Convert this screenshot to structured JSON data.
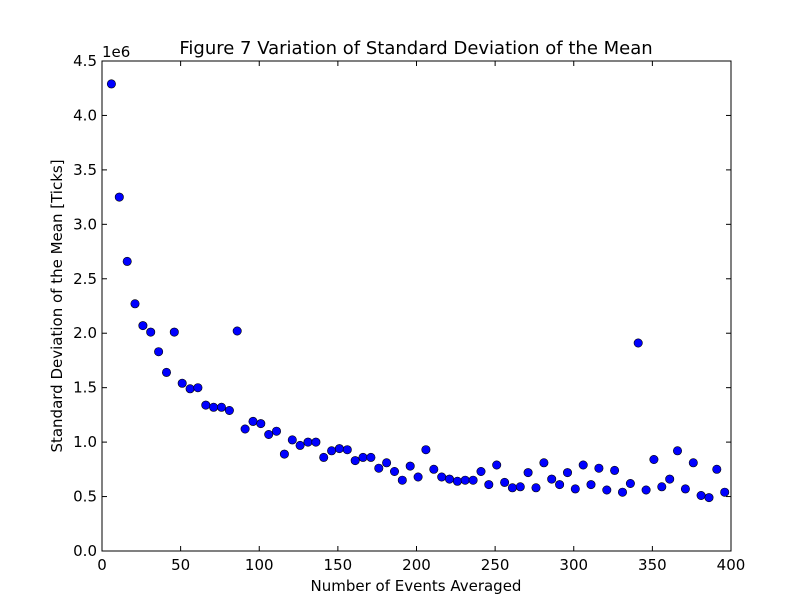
{
  "chart_data": {
    "type": "scatter",
    "title": "Figure 7 Variation of Standard Deviation of the Mean",
    "xlabel": "Number of Events Averaged",
    "ylabel": "Standard Deviation of the Mean [Ticks]",
    "y_offset_label": "1e6",
    "xlim": [
      0,
      400
    ],
    "ylim": [
      0,
      4.5
    ],
    "x_ticks": [
      0,
      50,
      100,
      150,
      200,
      250,
      300,
      350,
      400
    ],
    "x_tick_labels": [
      "0",
      "50",
      "100",
      "150",
      "200",
      "250",
      "300",
      "350",
      "400"
    ],
    "y_ticks": [
      0,
      0.5,
      1.0,
      1.5,
      2.0,
      2.5,
      3.0,
      3.5,
      4.0,
      4.5
    ],
    "y_tick_labels": [
      "0.0",
      "0.5",
      "1.0",
      "1.5",
      "2.0",
      "2.5",
      "3.0",
      "3.5",
      "4.0",
      "4.5"
    ],
    "grid": false,
    "marker_color": "#0000ff",
    "series": [
      {
        "x": [
          6,
          11,
          16,
          21,
          26,
          31,
          36,
          41,
          46,
          51,
          56,
          61,
          66,
          71,
          76,
          81,
          86,
          91,
          96,
          101,
          106,
          111,
          116,
          121,
          126,
          131,
          136,
          141,
          146,
          151,
          156,
          161,
          166,
          171,
          176,
          181,
          186,
          191,
          196,
          201,
          206,
          211,
          216,
          221,
          226,
          231,
          236,
          241,
          246,
          251,
          256,
          261,
          266,
          271,
          276,
          281,
          286,
          291,
          296,
          301,
          306,
          311,
          316,
          321,
          326,
          331,
          336,
          341,
          346,
          351,
          356,
          361,
          366,
          371,
          376,
          381,
          386,
          391,
          396
        ],
        "y": [
          4.29,
          3.25,
          2.66,
          2.27,
          2.07,
          2.01,
          1.83,
          1.64,
          2.01,
          1.54,
          1.49,
          1.5,
          1.34,
          1.32,
          1.32,
          1.29,
          2.02,
          1.12,
          1.19,
          1.17,
          1.07,
          1.1,
          0.89,
          1.02,
          0.97,
          1.0,
          1.0,
          0.86,
          0.92,
          0.94,
          0.93,
          0.83,
          0.86,
          0.86,
          0.76,
          0.81,
          0.73,
          0.65,
          0.78,
          0.68,
          0.93,
          0.75,
          0.68,
          0.66,
          0.64,
          0.65,
          0.65,
          0.73,
          0.61,
          0.79,
          0.63,
          0.58,
          0.59,
          0.72,
          0.58,
          0.81,
          0.66,
          0.61,
          0.72,
          0.57,
          0.79,
          0.61,
          0.76,
          0.56,
          0.74,
          0.54,
          0.62,
          1.91,
          0.56,
          0.84,
          0.59,
          0.66,
          0.92,
          0.57,
          0.81,
          0.51,
          0.49,
          0.75,
          0.54
        ]
      }
    ]
  }
}
